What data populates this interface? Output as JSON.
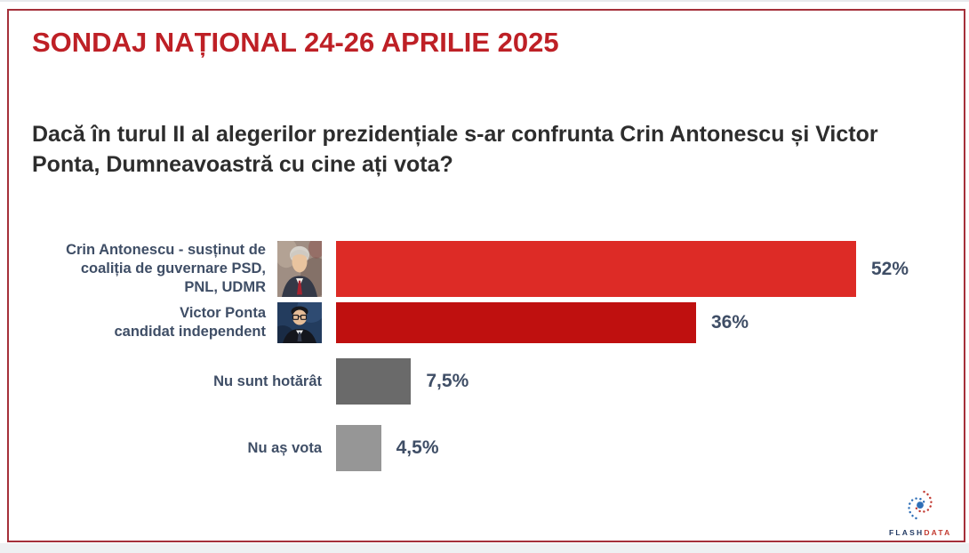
{
  "title": "SONDAJ NAȚIONAL 24-26 APRILIE 2025",
  "question": "Dacă în turul II al alegerilor prezidențiale s-ar confrunta Crin Antonescu și Victor Ponta, Dumneavoastră cu cine ați vota?",
  "chart_data": {
    "type": "bar",
    "orientation": "horizontal",
    "categories": [
      "Crin Antonescu - susținut de coaliția de guvernare PSD, PNL, UDMR",
      "Victor Ponta candidat independent",
      "Nu sunt hotărât",
      "Nu aș vota"
    ],
    "values": [
      52,
      36,
      7.5,
      4.5
    ],
    "value_labels": [
      "52%",
      "36%",
      "7,5%",
      "4,5%"
    ],
    "xlim": [
      0,
      60
    ],
    "grid": false,
    "legend": false,
    "rows": [
      {
        "label_lines": [
          "Crin Antonescu - susținut de",
          "coaliția de guvernare PSD,",
          "PNL, UDMR"
        ],
        "photo": "Crin Antonescu portrait",
        "value": 52,
        "value_label": "52%",
        "color": "#dd2b26"
      },
      {
        "label_lines": [
          "Victor Ponta",
          "candidat independent"
        ],
        "photo": "Victor Ponta portrait",
        "value": 36,
        "value_label": "36%",
        "color": "#bf100f"
      },
      {
        "label_lines": [
          "Nu sunt hotărât"
        ],
        "photo": null,
        "value": 7.5,
        "value_label": "7,5%",
        "color": "#6a6a6a"
      },
      {
        "label_lines": [
          "Nu aș vota"
        ],
        "photo": null,
        "value": 4.5,
        "value_label": "4,5%",
        "color": "#969696"
      }
    ]
  },
  "logo": {
    "brand_flash": "FLASH",
    "brand_data": "DATA"
  },
  "colors": {
    "title": "#be2026",
    "frame_border": "#a5303a",
    "question_text": "#2d2d2d",
    "label_text": "#3f4e66",
    "bar_red_bright": "#dd2b26",
    "bar_red_dark": "#bf100f",
    "bar_gray_dark": "#6a6a6a",
    "bar_gray_light": "#969696",
    "logo_blue": "#2e6fb7",
    "logo_red": "#c23b33"
  }
}
